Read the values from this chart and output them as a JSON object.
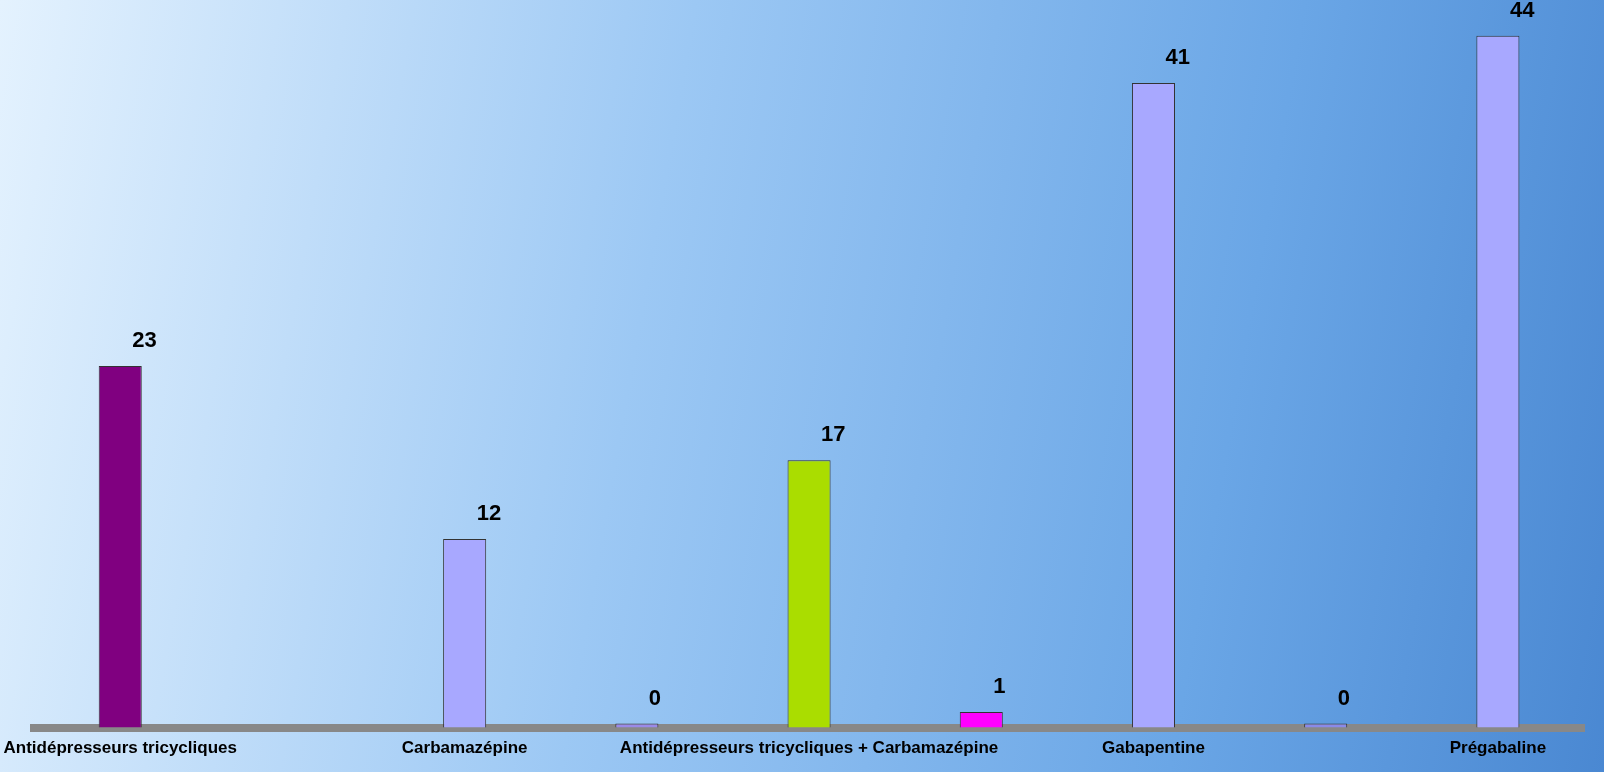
{
  "chart_data": {
    "type": "bar",
    "categories": [
      "Antidépresseurs tricycliques",
      null,
      "Carbamazépine",
      null,
      "Antidépresseurs tricycliques + Carbamazépine",
      null,
      "Gabapentine",
      null,
      "Prégabaline"
    ],
    "values": [
      23,
      null,
      12,
      0,
      17,
      1,
      41,
      0,
      44
    ],
    "colors": [
      "#800080",
      "#a8a8ff",
      "#a8a8ff",
      "#9a8ae8",
      "#aadd00",
      "#ff00ff",
      "#a8a8ff",
      "#8a8ae8",
      "#a8a8ff"
    ],
    "data_labels": true,
    "grid": false,
    "legend": false
  }
}
